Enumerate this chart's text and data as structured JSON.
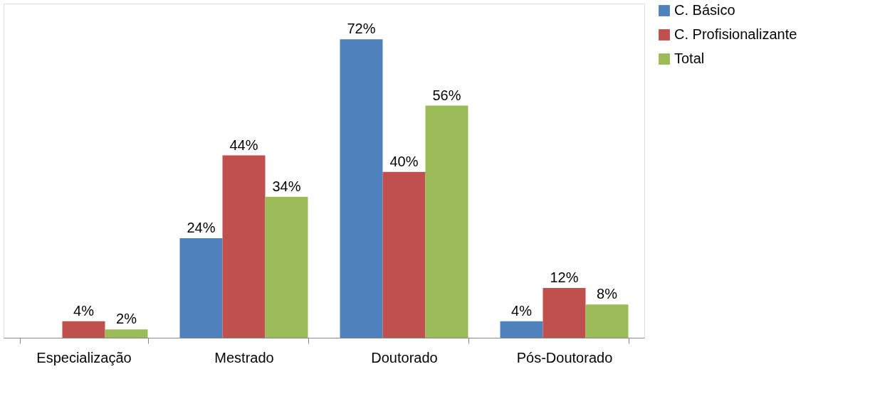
{
  "chart_data": {
    "type": "bar",
    "categories": [
      "Especialização",
      "Mestrado",
      "Doutorado",
      "Pós-Doutorado"
    ],
    "series": [
      {
        "name": "C. Básico",
        "color": "#4f81bd",
        "values": [
          null,
          24,
          72,
          4
        ],
        "value_labels": [
          null,
          "24%",
          "72%",
          "4%"
        ]
      },
      {
        "name": "C. Profisionalizante",
        "color": "#c0504d",
        "values": [
          4,
          44,
          40,
          12
        ],
        "value_labels": [
          "4%",
          "44%",
          "40%",
          "12%"
        ]
      },
      {
        "name": "Total",
        "color": "#9bbb59",
        "values": [
          2,
          34,
          56,
          8
        ],
        "value_labels": [
          "2%",
          "34%",
          "56%",
          "8%"
        ]
      }
    ],
    "legend": "right",
    "grid": false
  }
}
